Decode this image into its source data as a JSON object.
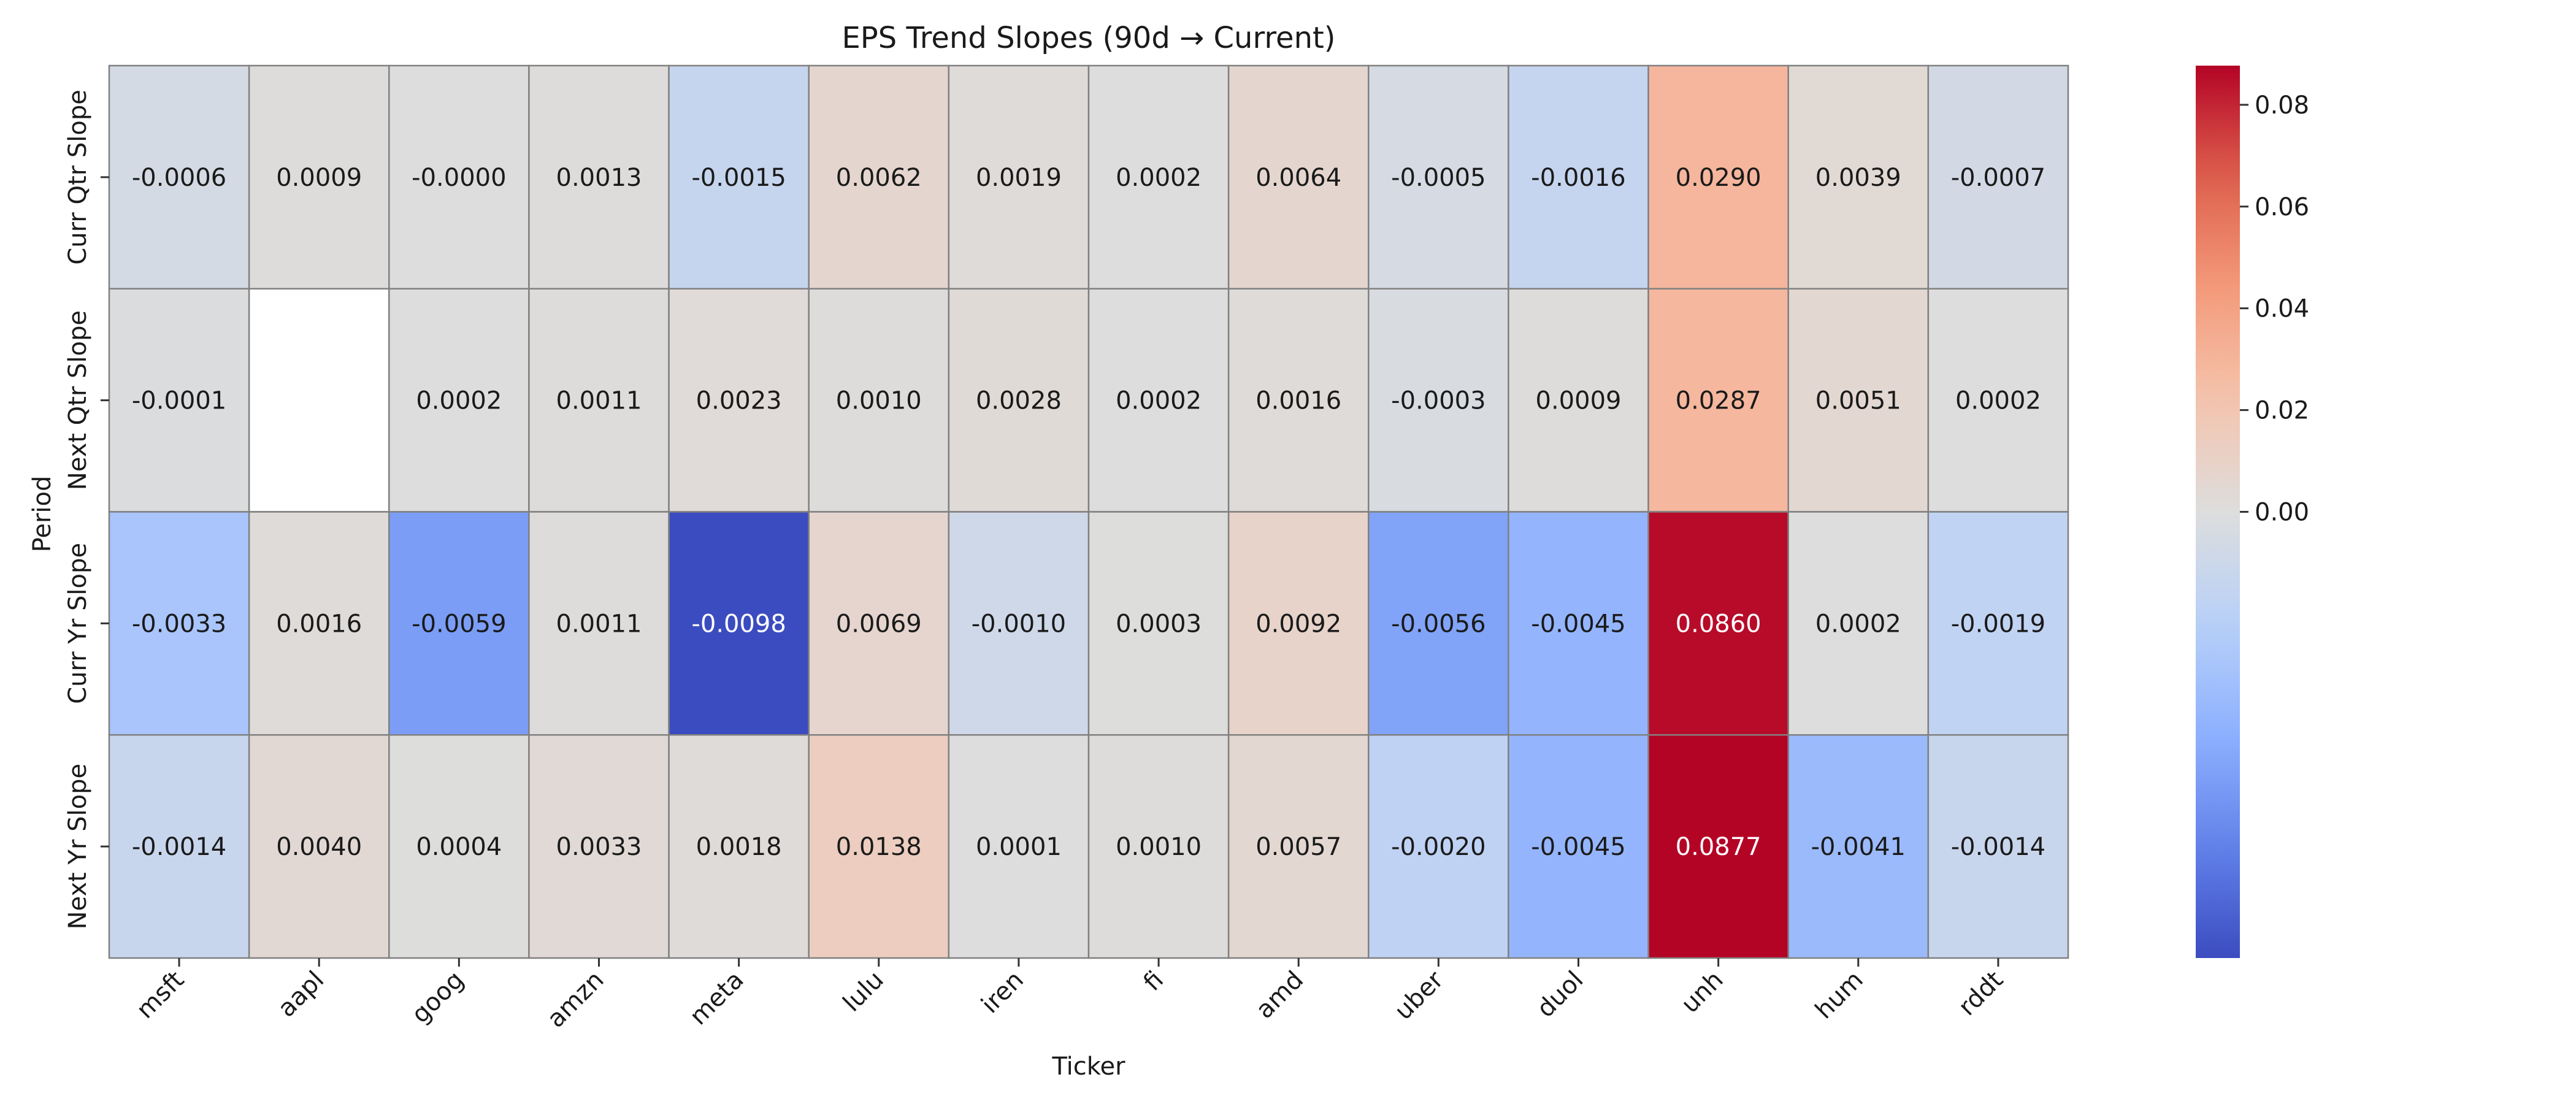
{
  "chart_data": {
    "type": "heatmap",
    "title": "EPS Trend Slopes (90d → Current)",
    "xlabel": "Ticker",
    "ylabel": "Period",
    "x_categories": [
      "msft",
      "aapl",
      "goog",
      "amzn",
      "meta",
      "lulu",
      "iren",
      "fi",
      "amd",
      "uber",
      "duol",
      "unh",
      "hum",
      "rddt"
    ],
    "y_categories": [
      "Curr Qtr Slope",
      "Next Qtr Slope",
      "Curr Yr Slope",
      "Next Yr Slope"
    ],
    "values": [
      [
        -0.0006,
        0.0009,
        -0.0,
        0.0013,
        -0.0015,
        0.0062,
        0.0019,
        0.0002,
        0.0064,
        -0.0005,
        -0.0016,
        0.029,
        0.0039,
        -0.0007
      ],
      [
        -0.0001,
        null,
        0.0002,
        0.0011,
        0.0023,
        0.001,
        0.0028,
        0.0002,
        0.0016,
        -0.0003,
        0.0009,
        0.0287,
        0.0051,
        0.0002
      ],
      [
        -0.0033,
        0.0016,
        -0.0059,
        0.0011,
        -0.0098,
        0.0069,
        -0.001,
        0.0003,
        0.0092,
        -0.0056,
        -0.0045,
        0.086,
        0.0002,
        -0.0019
      ],
      [
        -0.0014,
        0.004,
        0.0004,
        0.0033,
        0.0018,
        0.0138,
        0.0001,
        0.001,
        0.0057,
        -0.002,
        -0.0045,
        0.0877,
        -0.0041,
        -0.0014
      ]
    ],
    "labels": [
      [
        "-0.0006",
        "0.0009",
        "-0.0000",
        "0.0013",
        "-0.0015",
        "0.0062",
        "0.0019",
        "0.0002",
        "0.0064",
        "-0.0005",
        "-0.0016",
        "0.0290",
        "0.0039",
        "-0.0007"
      ],
      [
        "-0.0001",
        "",
        "0.0002",
        "0.0011",
        "0.0023",
        "0.0010",
        "0.0028",
        "0.0002",
        "0.0016",
        "-0.0003",
        "0.0009",
        "0.0287",
        "0.0051",
        "0.0002"
      ],
      [
        "-0.0033",
        "0.0016",
        "-0.0059",
        "0.0011",
        "-0.0098",
        "0.0069",
        "-0.0010",
        "0.0003",
        "0.0092",
        "-0.0056",
        "-0.0045",
        "0.0860",
        "0.0002",
        "-0.0019"
      ],
      [
        "-0.0014",
        "0.0040",
        "0.0004",
        "0.0033",
        "0.0018",
        "0.0138",
        "0.0001",
        "0.0010",
        "0.0057",
        "-0.0020",
        "-0.0045",
        "0.0877",
        "-0.0041",
        "-0.0014"
      ]
    ],
    "colormap": "coolwarm",
    "vmin": -0.0098,
    "vmax": 0.0877,
    "vcenter": 0,
    "colorbar_ticks": [
      0.0,
      0.02,
      0.04,
      0.06,
      0.08
    ],
    "colorbar_tick_labels": [
      "0.00",
      "0.02",
      "0.04",
      "0.06",
      "0.08"
    ],
    "missing_color": "#ffffff",
    "cell_border_color": "#808080"
  }
}
